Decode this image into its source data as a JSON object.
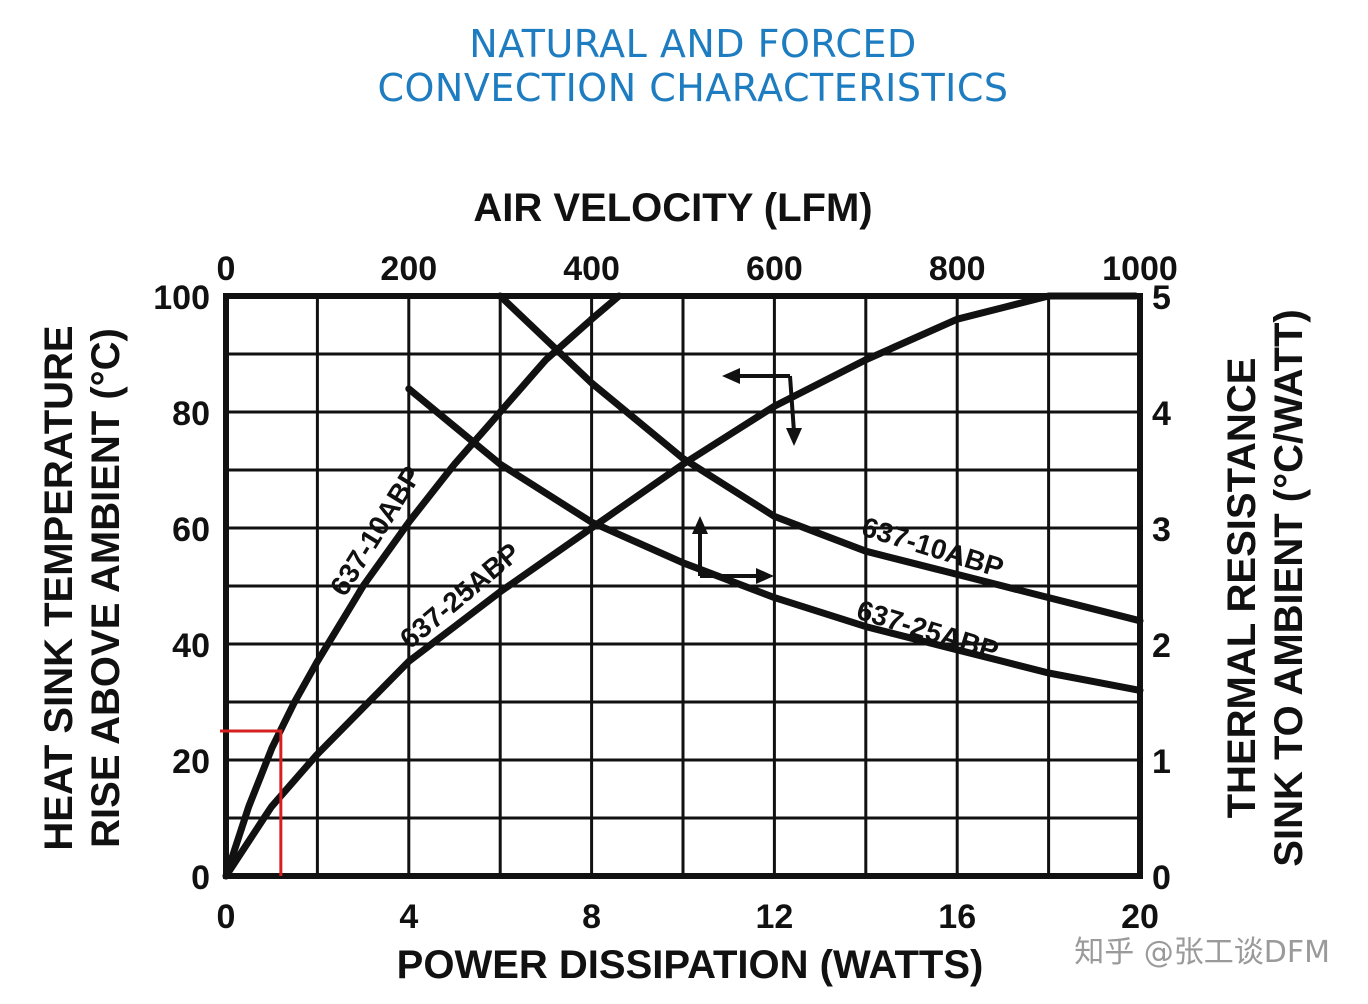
{
  "title": {
    "line1": "NATURAL AND FORCED",
    "line2": "CONVECTION CHARACTERISTICS"
  },
  "watermark": "知乎 @张工谈DFM",
  "colors": {
    "title": "#1e7cc0",
    "lines": "#111111",
    "marker": "#d62020"
  },
  "chart_data": {
    "type": "line",
    "grid": true,
    "axes": {
      "bottom": {
        "label": "POWER DISSIPATION (WATTS)",
        "range": [
          0,
          20
        ],
        "ticks": [
          0,
          4,
          8,
          12,
          16,
          20
        ]
      },
      "left": {
        "label_line1": "HEAT SINK TEMPERATURE",
        "label_line2": "RISE ABOVE AMBIENT (°C)",
        "range": [
          0,
          100
        ],
        "ticks": [
          0,
          20,
          40,
          60,
          80,
          100
        ]
      },
      "top": {
        "label": "AIR VELOCITY (LFM)",
        "range": [
          0,
          1000
        ],
        "ticks": [
          0,
          200,
          400,
          600,
          800,
          1000
        ]
      },
      "right": {
        "label_line1": "THERMAL RESISTANCE",
        "label_line2": "SINK TO AMBIENT (°C/WATT)",
        "range": [
          0,
          5
        ],
        "ticks": [
          0,
          1,
          2,
          3,
          4,
          5
        ]
      }
    },
    "series": [
      {
        "name": "637-10ABP",
        "axes": "power-temperature",
        "x": [
          0,
          0.5,
          1,
          1.5,
          2,
          3,
          4,
          5,
          6,
          7,
          8,
          8.6
        ],
        "y": [
          0,
          12,
          22,
          30,
          37,
          50,
          61,
          71,
          80,
          89,
          96,
          100
        ]
      },
      {
        "name": "637-25ABP",
        "axes": "power-temperature",
        "x": [
          0,
          1,
          2,
          4,
          6,
          8,
          10,
          12,
          14,
          16,
          18,
          19.9
        ],
        "y": [
          0,
          12,
          21,
          37,
          49,
          60,
          71,
          81,
          89,
          96,
          100,
          100
        ]
      },
      {
        "name": "637-10ABP",
        "axes": "velocity-resistance",
        "x": [
          300,
          400,
          500,
          600,
          700,
          800,
          900,
          1000
        ],
        "y": [
          5.0,
          4.25,
          3.6,
          3.1,
          2.8,
          2.6,
          2.4,
          2.2
        ]
      },
      {
        "name": "637-25ABP",
        "axes": "velocity-resistance",
        "x": [
          200,
          300,
          400,
          500,
          600,
          700,
          800,
          900,
          1000
        ],
        "y": [
          4.2,
          3.55,
          3.05,
          2.7,
          2.4,
          2.15,
          1.95,
          1.75,
          1.6
        ]
      }
    ],
    "annotations": [
      {
        "type": "axis-arrow",
        "points_to": "left",
        "near_series": "637-10ABP"
      },
      {
        "type": "axis-arrow",
        "points_to": "right",
        "near_series": "637-25ABP"
      },
      {
        "type": "highlight",
        "color": "red",
        "x": 1.2,
        "y": 25
      }
    ]
  }
}
